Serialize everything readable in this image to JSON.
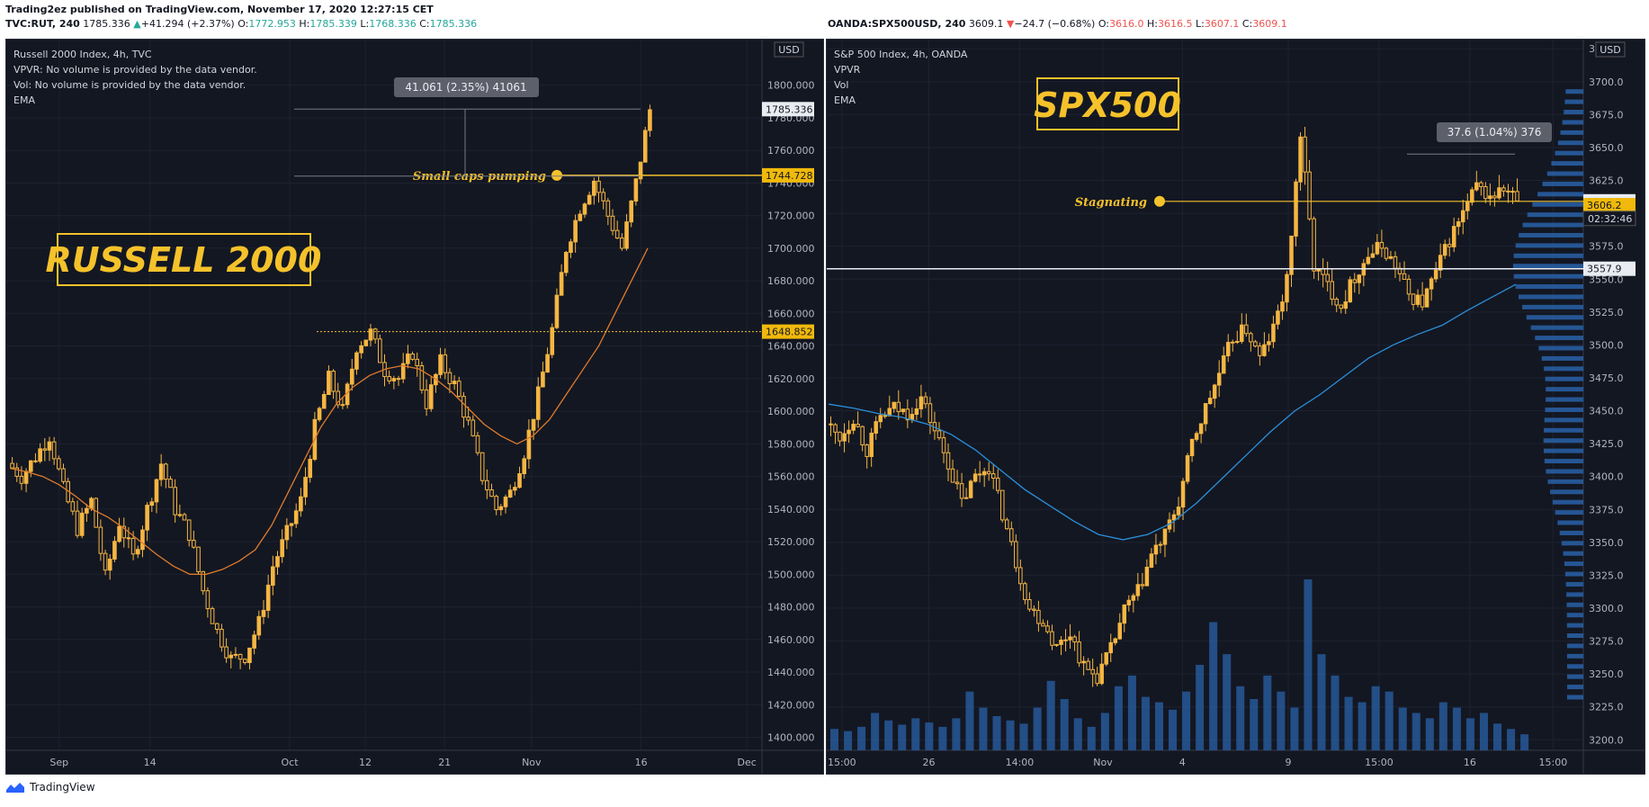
{
  "header": {
    "publisher_line": "Trading2ez published on TradingView.com, November 17, 2020 12:27:15 CET",
    "left_symbol": "TVC:RUT, 240",
    "left_price": "1785.336",
    "left_change": "+41.294 (+2.37%)",
    "left_o_label": "O:",
    "left_o": "1772.953",
    "left_h_label": "H:",
    "left_h": "1785.339",
    "left_l_label": "L:",
    "left_l": "1768.336",
    "left_c_label": "C:",
    "left_c": "1785.336",
    "right_symbol": "OANDA:SPX500USD, 240",
    "right_price": "3609.1",
    "right_change": "−24.7 (−0.68%)",
    "right_o_label": "O:",
    "right_o": "3616.0",
    "right_h_label": "H:",
    "right_h": "3616.5",
    "right_l_label": "L:",
    "right_l": "3607.1",
    "right_c_label": "C:",
    "right_c": "3609.1"
  },
  "footer": {
    "brand": "TradingView",
    "icon": "tradingview-logo-icon"
  },
  "colors": {
    "up": "#26a69a",
    "down": "#ef5350",
    "candle": "#f5b642",
    "ema_left": "#e07b2a",
    "ema_right": "#2b8fd9",
    "annotation": "#f5c22b",
    "panel_bg": "#131722",
    "volume": "#2962a8"
  },
  "chart_data": [
    {
      "type": "candlestick",
      "legend": [
        "Russell 2000 Index, 4h, TVC",
        "VPVR: No volume is provided by the data vendor.",
        "Vol: No volume is provided by the data vendor.",
        "EMA"
      ],
      "currency": "USD",
      "big_label": "RUSSELL 2000",
      "annotation": "Small caps pumping",
      "measure_label": "41.061 (2.35%) 41061",
      "ylim": [
        1392,
        1828
      ],
      "y_ticks": [
        1400,
        1420,
        1440,
        1460,
        1480,
        1500,
        1520,
        1540,
        1560,
        1580,
        1600,
        1620,
        1640,
        1660,
        1680,
        1700,
        1720,
        1740,
        1760,
        1780,
        1800
      ],
      "y_tick_labels": [
        "1400.000",
        "1420.000",
        "1440.000",
        "1460.000",
        "1480.000",
        "1500.000",
        "1520.000",
        "1540.000",
        "1560.000",
        "1580.000",
        "1600.000",
        "1620.000",
        "1640.000",
        "1660.000",
        "1680.000",
        "1700.000",
        "1720.000",
        "1740.000",
        "1760.000",
        "1780.000",
        "1800.000"
      ],
      "price_tags": [
        {
          "value": 1785.336,
          "label": "1785.336",
          "style": "white"
        },
        {
          "value": 1744.728,
          "label": "1744.728",
          "style": "gold"
        },
        {
          "value": 1648.852,
          "label": "1648.852",
          "style": "gold"
        }
      ],
      "x_labels": [
        {
          "label": "Sep",
          "t": 0.07
        },
        {
          "label": "14",
          "t": 0.19
        },
        {
          "label": "Oct",
          "t": 0.375
        },
        {
          "label": "12",
          "t": 0.475
        },
        {
          "label": "21",
          "t": 0.58
        },
        {
          "label": "Nov",
          "t": 0.695
        },
        {
          "label": "16",
          "t": 0.84
        },
        {
          "label": "Dec",
          "t": 0.98
        }
      ],
      "candle_path": [
        1568,
        1560,
        1572,
        1585,
        1552,
        1528,
        1545,
        1498,
        1532,
        1510,
        1540,
        1568,
        1540,
        1525,
        1490,
        1465,
        1448,
        1450,
        1470,
        1505,
        1525,
        1545,
        1590,
        1620,
        1600,
        1640,
        1648,
        1625,
        1620,
        1636,
        1605,
        1630,
        1616,
        1592,
        1560,
        1540,
        1550,
        1575,
        1610,
        1650,
        1700,
        1725,
        1742,
        1720,
        1700,
        1740,
        1785
      ],
      "ema": [
        1565,
        1563,
        1560,
        1555,
        1548,
        1540,
        1535,
        1528,
        1520,
        1512,
        1505,
        1500,
        1500,
        1503,
        1508,
        1515,
        1530,
        1550,
        1570,
        1590,
        1605,
        1615,
        1622,
        1626,
        1628,
        1626,
        1620,
        1612,
        1602,
        1592,
        1585,
        1580,
        1585,
        1595,
        1610,
        1625,
        1640,
        1660,
        1680,
        1700
      ]
    },
    {
      "type": "candlestick",
      "legend": [
        "S&P 500 Index, 4h, OANDA",
        "VPVR",
        "Vol",
        "EMA"
      ],
      "currency": "USD",
      "big_label": "SPX500",
      "annotation": "Stagnating",
      "measure_label": "37.6 (1.04%) 376",
      "countdown": "02:32:46",
      "ylim": [
        3192,
        3732
      ],
      "y_ticks": [
        3200,
        3225,
        3250,
        3275,
        3300,
        3325,
        3350,
        3375,
        3400,
        3425,
        3450,
        3475,
        3500,
        3525,
        3550,
        3575,
        3600,
        3625,
        3650,
        3675,
        3700,
        3725
      ],
      "y_tick_labels": [
        "3200.0",
        "3225.0",
        "3250.0",
        "3275.0",
        "3300.0",
        "3325.0",
        "3350.0",
        "3375.0",
        "3400.0",
        "3425.0",
        "3450.0",
        "3475.0",
        "3500.0",
        "3525.0",
        "3550.0",
        "3575.0",
        "3600.0",
        "3625.0",
        "3650.0",
        "3675.0",
        "3700.0",
        "3725.0"
      ],
      "price_tags": [
        {
          "value": 3609.1,
          "label": "3609.1",
          "style": "white"
        },
        {
          "value": 3606.2,
          "label": "3606.2",
          "style": "gold"
        },
        {
          "value": 3557.9,
          "label": "3557.9",
          "style": "white"
        }
      ],
      "x_labels": [
        {
          "label": "15:00",
          "t": 0.02
        },
        {
          "label": "26",
          "t": 0.135
        },
        {
          "label": "14:00",
          "t": 0.255
        },
        {
          "label": "Nov",
          "t": 0.365
        },
        {
          "label": "4",
          "t": 0.47
        },
        {
          "label": "9",
          "t": 0.61
        },
        {
          "label": "15:00",
          "t": 0.73
        },
        {
          "label": "16",
          "t": 0.85
        },
        {
          "label": "15:00",
          "t": 0.96
        }
      ],
      "candle_path": [
        3440,
        3430,
        3445,
        3420,
        3445,
        3452,
        3448,
        3460,
        3435,
        3410,
        3380,
        3400,
        3408,
        3372,
        3335,
        3300,
        3290,
        3270,
        3282,
        3255,
        3248,
        3268,
        3298,
        3312,
        3340,
        3355,
        3380,
        3425,
        3452,
        3478,
        3505,
        3512,
        3490,
        3512,
        3548,
        3660,
        3560,
        3545,
        3530,
        3552,
        3568,
        3575,
        3560,
        3538,
        3532,
        3555,
        3580,
        3600,
        3620,
        3612,
        3618,
        3610
      ],
      "ema": [
        3455,
        3452,
        3448,
        3445,
        3440,
        3432,
        3420,
        3405,
        3390,
        3378,
        3366,
        3356,
        3352,
        3356,
        3365,
        3380,
        3398,
        3416,
        3434,
        3450,
        3462,
        3476,
        3490,
        3500,
        3508,
        3515,
        3526,
        3536,
        3546
      ],
      "volume": [
        20,
        18,
        22,
        35,
        28,
        24,
        30,
        26,
        22,
        30,
        55,
        40,
        32,
        28,
        25,
        40,
        65,
        48,
        30,
        22,
        35,
        60,
        70,
        50,
        45,
        38,
        55,
        80,
        120,
        90,
        60,
        48,
        70,
        55,
        40,
        160,
        90,
        70,
        50,
        45,
        60,
        55,
        40,
        35,
        30,
        45,
        40,
        30,
        35,
        25,
        20,
        15
      ]
    }
  ]
}
